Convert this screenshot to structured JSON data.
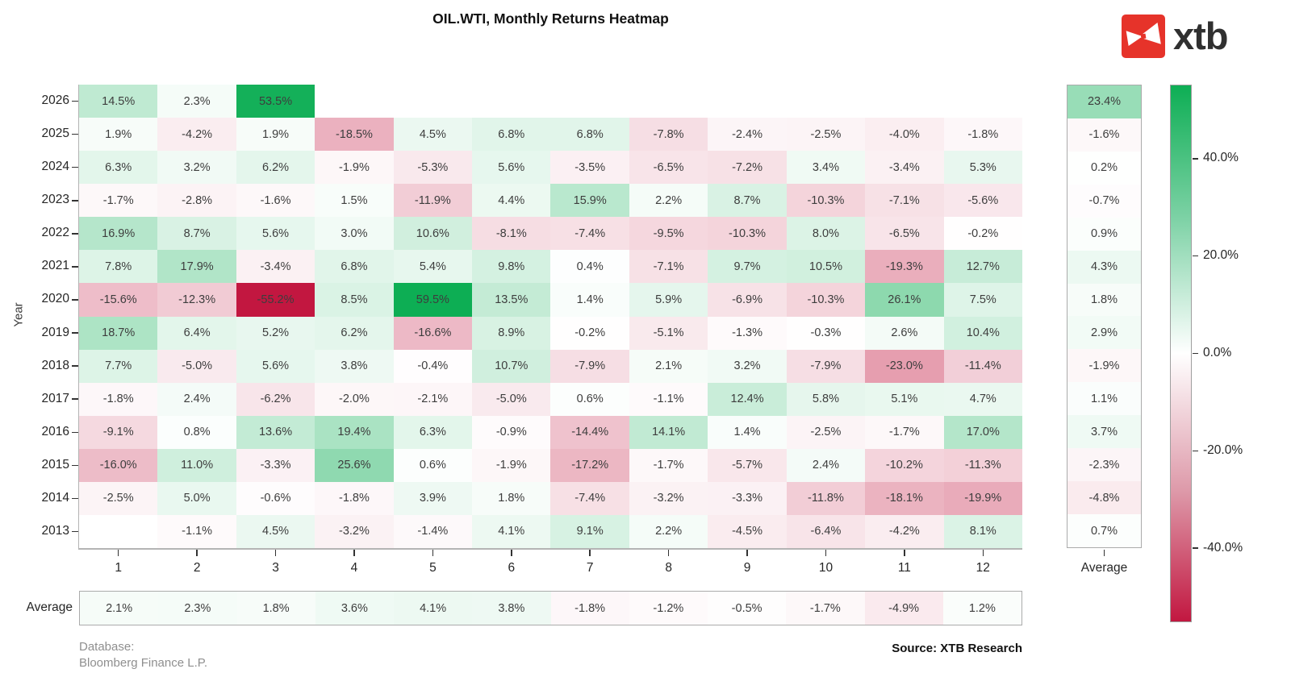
{
  "logo": {
    "text": "xtb",
    "badge_color": "#e6332a"
  },
  "chart_data": {
    "type": "heatmap",
    "title": "OIL.WTI, Monthly Returns Heatmap",
    "ylabel": "Year",
    "xlabel": "",
    "average_label": "Average",
    "years": [
      "2026",
      "2025",
      "2024",
      "2023",
      "2022",
      "2021",
      "2020",
      "2019",
      "2018",
      "2017",
      "2016",
      "2015",
      "2014",
      "2013"
    ],
    "months": [
      "1",
      "2",
      "3",
      "4",
      "5",
      "6",
      "7",
      "8",
      "9",
      "10",
      "11",
      "12"
    ],
    "values": [
      [
        14.5,
        2.3,
        53.5,
        null,
        null,
        null,
        null,
        null,
        null,
        null,
        null,
        null
      ],
      [
        1.9,
        -4.2,
        1.9,
        -18.5,
        4.5,
        6.8,
        6.8,
        -7.8,
        -2.4,
        -2.5,
        -4.0,
        -1.8
      ],
      [
        6.3,
        3.2,
        6.2,
        -1.9,
        -5.3,
        5.6,
        -3.5,
        -6.5,
        -7.2,
        3.4,
        -3.4,
        5.3
      ],
      [
        -1.7,
        -2.8,
        -1.6,
        1.5,
        -11.9,
        4.4,
        15.9,
        2.2,
        8.7,
        -10.3,
        -7.1,
        -5.6
      ],
      [
        16.9,
        8.7,
        5.6,
        3.0,
        10.6,
        -8.1,
        -7.4,
        -9.5,
        -10.3,
        8.0,
        -6.5,
        -0.2
      ],
      [
        7.8,
        17.9,
        -3.4,
        6.8,
        5.4,
        9.8,
        0.4,
        -7.1,
        9.7,
        10.5,
        -19.3,
        12.7
      ],
      [
        -15.6,
        -12.3,
        -55.2,
        8.5,
        59.5,
        13.5,
        1.4,
        5.9,
        -6.9,
        -10.3,
        26.1,
        7.5
      ],
      [
        18.7,
        6.4,
        5.2,
        6.2,
        -16.6,
        8.9,
        -0.2,
        -5.1,
        -1.3,
        -0.3,
        2.6,
        10.4
      ],
      [
        7.7,
        -5.0,
        5.6,
        3.8,
        -0.4,
        10.7,
        -7.9,
        2.1,
        3.2,
        -7.9,
        -23.0,
        -11.4
      ],
      [
        -1.8,
        2.4,
        -6.2,
        -2.0,
        -2.1,
        -5.0,
        0.6,
        -1.1,
        12.4,
        5.8,
        5.1,
        4.7
      ],
      [
        -9.1,
        0.8,
        13.6,
        19.4,
        6.3,
        -0.9,
        -14.4,
        14.1,
        1.4,
        -2.5,
        -1.7,
        17.0
      ],
      [
        -16.0,
        11.0,
        -3.3,
        25.6,
        0.6,
        -1.9,
        -17.2,
        -1.7,
        -5.7,
        2.4,
        -10.2,
        -11.3
      ],
      [
        -2.5,
        5.0,
        -0.6,
        -1.8,
        3.9,
        1.8,
        -7.4,
        -3.2,
        -3.3,
        -11.8,
        -18.1,
        -19.9
      ],
      [
        null,
        -1.1,
        4.5,
        -3.2,
        -1.4,
        4.1,
        9.1,
        2.2,
        -4.5,
        -6.4,
        -4.2,
        8.1
      ]
    ],
    "year_averages": [
      23.4,
      -1.6,
      0.2,
      -0.7,
      0.9,
      4.3,
      1.8,
      2.9,
      -1.9,
      1.1,
      3.7,
      -2.3,
      -4.8,
      0.7
    ],
    "month_averages": [
      2.1,
      2.3,
      1.8,
      3.6,
      4.1,
      3.8,
      -1.8,
      -1.2,
      -0.5,
      -1.7,
      -4.9,
      1.2
    ],
    "colorbar": {
      "ticks": [
        {
          "value": 40,
          "label": "40.0%"
        },
        {
          "value": 20,
          "label": "20.0%"
        },
        {
          "value": 0,
          "label": "0.0%"
        },
        {
          "value": -20,
          "label": "-20.0%"
        },
        {
          "value": -40,
          "label": "-40.0%"
        }
      ]
    },
    "colormap": {
      "positive": "#0dae54",
      "negative": "#c21740",
      "limit": 55.2
    },
    "legend_position": "right"
  },
  "footer": {
    "database_label": "Database:",
    "database_value": "Bloomberg Finance L.P.",
    "source": "Source: XTB Research"
  }
}
